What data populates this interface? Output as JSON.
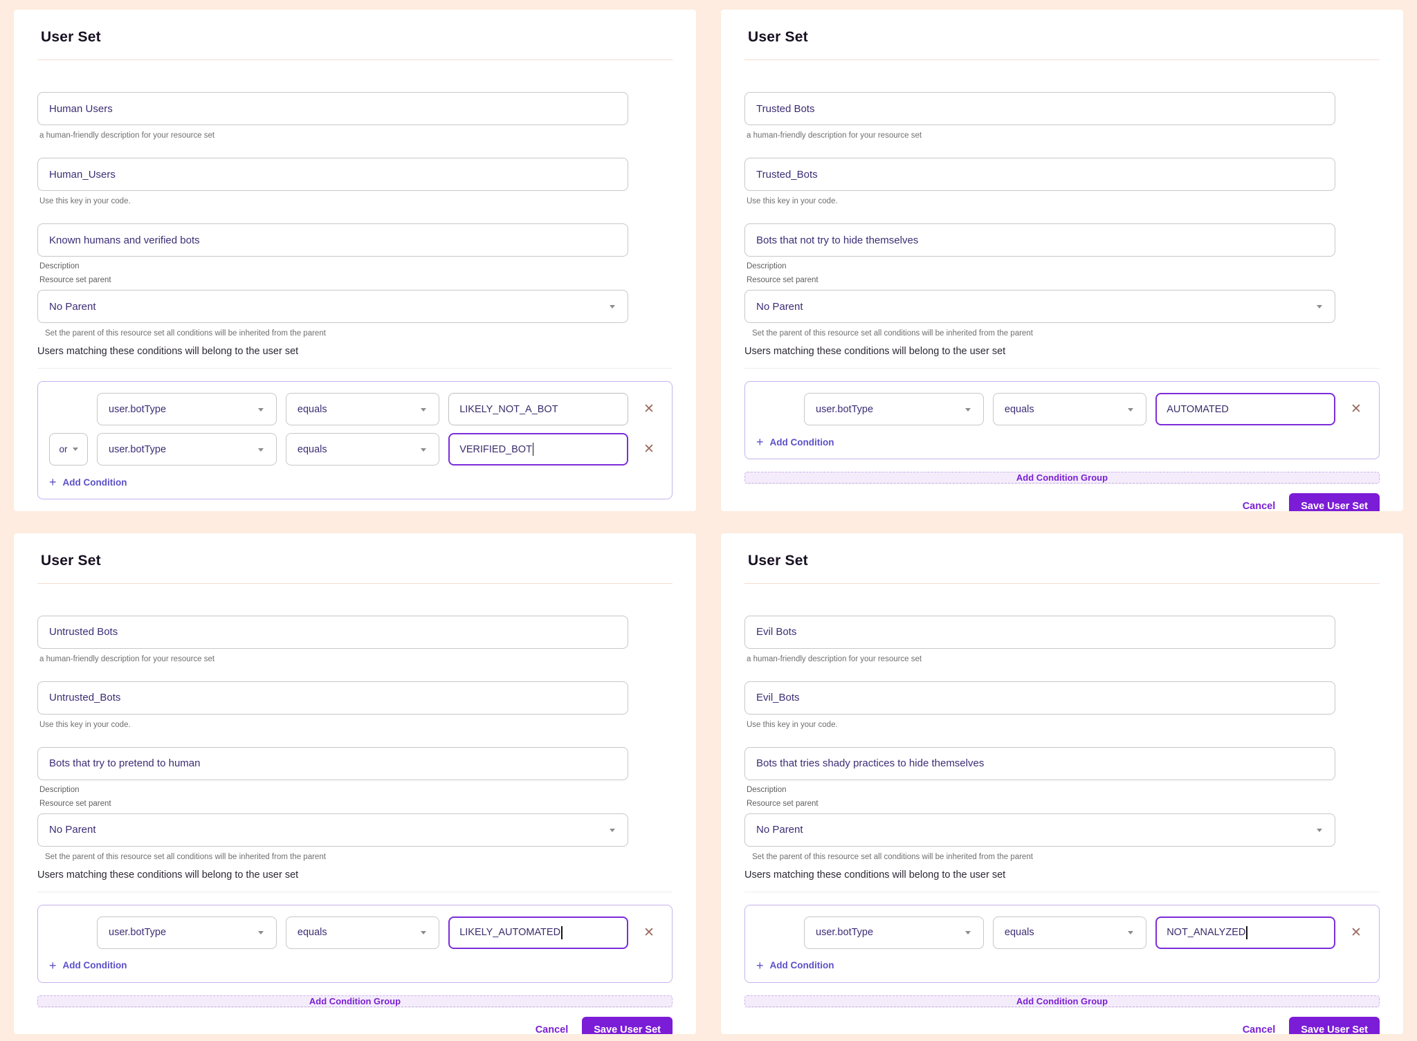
{
  "colors": {
    "page_background": "#fdecdf",
    "accent_purple": "#7b1cd6",
    "input_text": "#3c2d75",
    "condition_border": "#c5b3f0",
    "close_icon": "#9c6c60"
  },
  "shared": {
    "title": "User Set",
    "name_helper": "a human-friendly description for your resource set",
    "key_helper": "Use this key in your code.",
    "description_label": "Description",
    "parent_label": "Resource set parent",
    "parent_value": "No Parent",
    "parent_helper": "Set the parent of this resource set all conditions will be inherited from the parent",
    "conditions_intro": "Users matching these conditions will belong to the user set",
    "or_label": "or",
    "plus_glyph": "+",
    "add_condition_label": "Add Condition",
    "add_condition_group_label": "Add Condition Group",
    "cancel_label": "Cancel",
    "save_label": "Save User Set",
    "close_glyph": "✕"
  },
  "panels": [
    {
      "name_value": "Human Users",
      "key_value": "Human_Users",
      "description_value": "Known humans and verified bots",
      "rows": [
        {
          "field": "user.botType",
          "operator": "equals",
          "value": "LIKELY_NOT_A_BOT"
        },
        {
          "join": "or",
          "field": "user.botType",
          "operator": "equals",
          "value": "VERIFIED_BOT"
        }
      ]
    },
    {
      "name_value": "Trusted Bots",
      "key_value": "Trusted_Bots",
      "description_value": "Bots that not try to hide themselves",
      "rows": [
        {
          "field": "user.botType",
          "operator": "equals",
          "value": "AUTOMATED"
        }
      ]
    },
    {
      "name_value": "Untrusted Bots",
      "key_value": "Untrusted_Bots",
      "description_value": "Bots that try to pretend to human",
      "rows": [
        {
          "field": "user.botType",
          "operator": "equals",
          "value": "LIKELY_AUTOMATED"
        }
      ]
    },
    {
      "name_value": "Evil Bots",
      "key_value": "Evil_Bots",
      "description_value": "Bots that tries shady practices to hide themselves",
      "rows": [
        {
          "field": "user.botType",
          "operator": "equals",
          "value": "NOT_ANALYZED"
        }
      ]
    }
  ]
}
